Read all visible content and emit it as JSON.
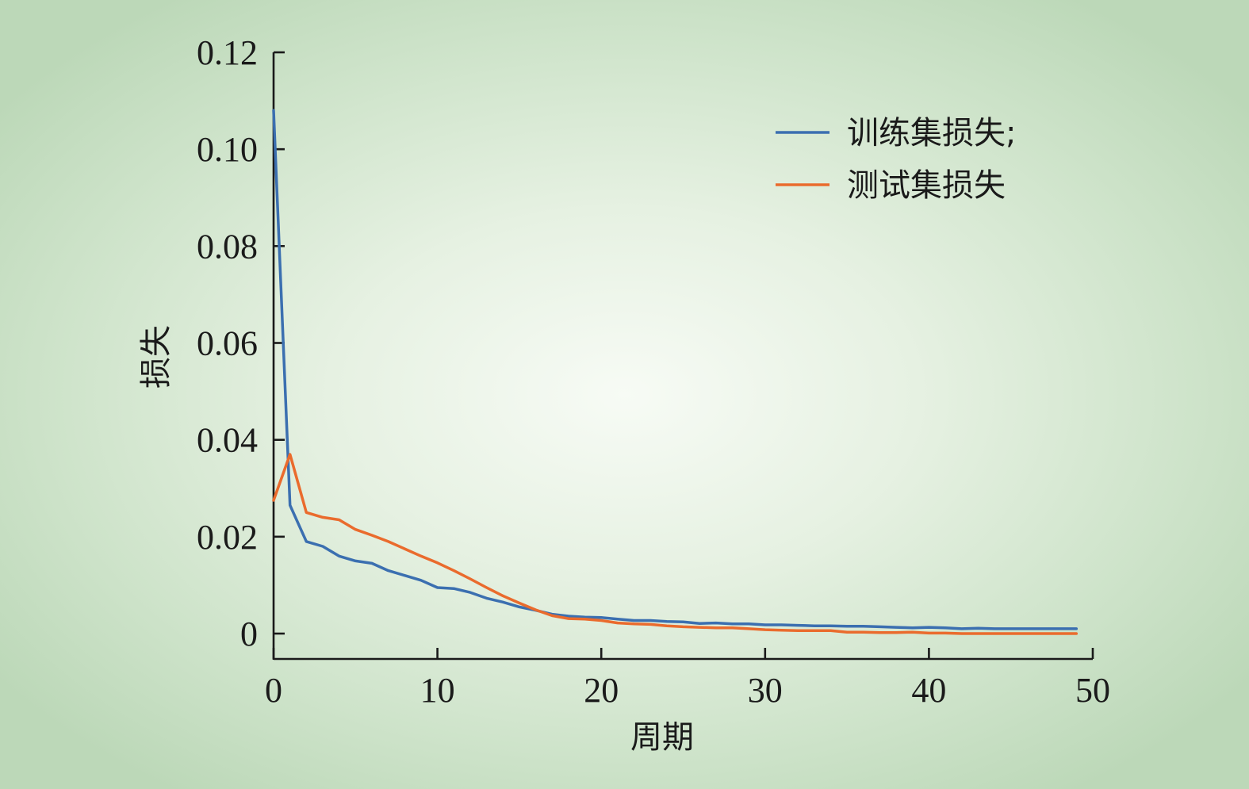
{
  "chart_data": {
    "type": "line",
    "xlabel": "周期",
    "ylabel": "损失",
    "xlim": [
      0,
      50
    ],
    "ylim": [
      0,
      0.12
    ],
    "xticks": [
      "0",
      "10",
      "20",
      "30",
      "40",
      "50"
    ],
    "yticks": [
      "0",
      "0.02",
      "0.04",
      "0.06",
      "0.08",
      "0.10",
      "0.12"
    ],
    "legend_position": "top-right",
    "series": [
      {
        "name": "训练集损失;",
        "color": "#3b6fb0",
        "x": [
          0,
          1,
          2,
          3,
          4,
          5,
          6,
          7,
          8,
          9,
          10,
          11,
          12,
          13,
          14,
          15,
          16,
          17,
          18,
          19,
          20,
          21,
          22,
          23,
          24,
          25,
          26,
          27,
          28,
          29,
          30,
          31,
          32,
          33,
          34,
          35,
          36,
          37,
          38,
          39,
          40,
          41,
          42,
          43,
          44,
          45,
          46,
          47,
          48,
          49
        ],
        "values": [
          0.108,
          0.0265,
          0.019,
          0.018,
          0.016,
          0.015,
          0.0145,
          0.013,
          0.012,
          0.011,
          0.0095,
          0.0093,
          0.0085,
          0.0073,
          0.0065,
          0.0055,
          0.0048,
          0.004,
          0.0036,
          0.0034,
          0.0033,
          0.003,
          0.0027,
          0.0027,
          0.0025,
          0.0024,
          0.0021,
          0.0022,
          0.002,
          0.002,
          0.0018,
          0.0018,
          0.0017,
          0.0016,
          0.0016,
          0.0015,
          0.0015,
          0.0014,
          0.0013,
          0.0012,
          0.0013,
          0.0012,
          0.001,
          0.0011,
          0.001,
          0.001,
          0.001,
          0.001,
          0.001,
          0.001
        ]
      },
      {
        "name": "测试集损失",
        "color": "#ea6b2d",
        "x": [
          0,
          1,
          2,
          3,
          4,
          5,
          6,
          7,
          8,
          9,
          10,
          11,
          12,
          13,
          14,
          15,
          16,
          17,
          18,
          19,
          20,
          21,
          22,
          23,
          24,
          25,
          26,
          27,
          28,
          29,
          30,
          31,
          32,
          33,
          34,
          35,
          36,
          37,
          38,
          39,
          40,
          41,
          42,
          43,
          44,
          45,
          46,
          47,
          48,
          49
        ],
        "values": [
          0.0275,
          0.037,
          0.025,
          0.024,
          0.0235,
          0.0215,
          0.0203,
          0.019,
          0.0175,
          0.016,
          0.0146,
          0.013,
          0.0113,
          0.0095,
          0.0078,
          0.0063,
          0.0049,
          0.0037,
          0.0031,
          0.003,
          0.0027,
          0.0022,
          0.002,
          0.0019,
          0.0016,
          0.0014,
          0.0013,
          0.0012,
          0.0012,
          0.001,
          0.0008,
          0.0007,
          0.0006,
          0.0006,
          0.0006,
          0.0003,
          0.0003,
          0.0002,
          0.0002,
          0.0003,
          0.0001,
          0.0001,
          0.0,
          0.0,
          0.0,
          0.0,
          0.0,
          0.0,
          0.0,
          0.0
        ]
      }
    ]
  }
}
